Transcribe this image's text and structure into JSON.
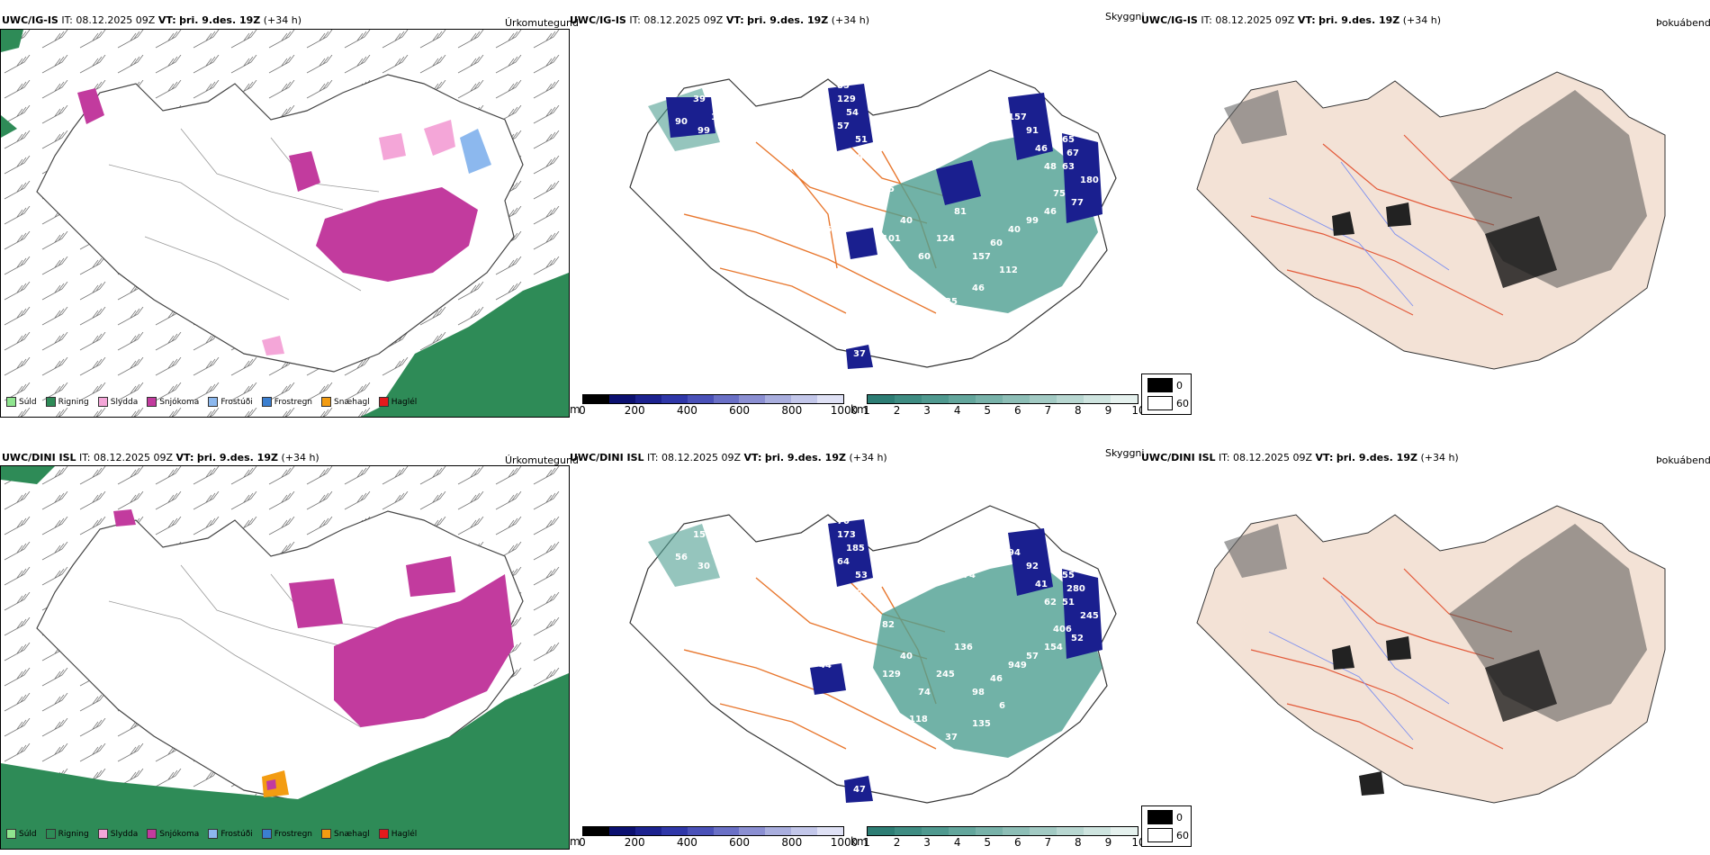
{
  "rows": [
    {
      "header": {
        "model": "UWC/IG-IS",
        "it_label": "IT:",
        "it_value": "08.12.2025 09Z",
        "vt_label": "VT:",
        "vt_value": "þri. 9.des. 19Z",
        "lead": "(+34 h)"
      },
      "precip_title": "Úrkomutegund",
      "vis_title": "Skyggni",
      "fog_title": "Þokuábendi",
      "vis_labels": [
        "56",
        "39",
        "102",
        "90",
        "99",
        "85",
        "129",
        "54",
        "57",
        "51",
        "78",
        "62",
        "65",
        "33",
        "46",
        "43",
        "94",
        "135",
        "98",
        "157",
        "91",
        "46",
        "48",
        "65",
        "67",
        "63",
        "180",
        "75",
        "77",
        "46",
        "99",
        "40",
        "60",
        "157",
        "81",
        "124",
        "60",
        "40",
        "101",
        "112",
        "46",
        "35",
        "37",
        "26"
      ]
    },
    {
      "header": {
        "model": "UWC/DINI ISL",
        "it_label": "IT:",
        "it_value": "08.12.2025 09Z",
        "vt_label": "VT:",
        "vt_value": "þri. 9.des. 19Z",
        "lead": "(+34 h)"
      },
      "precip_title": "Úrkomutegund",
      "vis_title": "Skyggni",
      "fog_title": "Þokuábendi",
      "vis_labels": [
        "67",
        "15",
        "60",
        "56",
        "30",
        "70",
        "173",
        "185",
        "64",
        "53",
        "57",
        "65",
        "82",
        "125",
        "81",
        "71",
        "63",
        "74",
        "93",
        "94",
        "92",
        "41",
        "62",
        "55",
        "280",
        "51",
        "245",
        "406",
        "52",
        "154",
        "57",
        "949",
        "46",
        "98",
        "136",
        "245",
        "74",
        "40",
        "129",
        "6",
        "135",
        "37",
        "47",
        "44",
        "118"
      ]
    }
  ],
  "precip_legend": [
    {
      "label": "Súld",
      "color": "#8fe58f"
    },
    {
      "label": "Rigning",
      "color": "#2e8b57"
    },
    {
      "label": "Slydda",
      "color": "#f4a6d8"
    },
    {
      "label": "Snjókoma",
      "color": "#c23b9e"
    },
    {
      "label": "Frostúði",
      "color": "#8cb8ee"
    },
    {
      "label": "Frostregn",
      "color": "#3b7fd0"
    },
    {
      "label": "Snæhagl",
      "color": "#f39c12"
    },
    {
      "label": "Haglél",
      "color": "#e41a1c"
    }
  ],
  "ceiling_scale": {
    "unit": "m",
    "ticks": [
      "0",
      "200",
      "400",
      "600",
      "800",
      "1000"
    ],
    "colors": [
      "#000000",
      "#0b1070",
      "#1c228f",
      "#2f37a8",
      "#4a51b8",
      "#6a70c6",
      "#8b8fd2",
      "#a9aede",
      "#c3c7ea",
      "#dfe1f5"
    ]
  },
  "vis_scale": {
    "unit": "km",
    "ticks": [
      "1",
      "2",
      "3",
      "4",
      "5",
      "6",
      "7",
      "8",
      "9",
      "10"
    ],
    "colors": [
      "#2d7d74",
      "#3e8c82",
      "#4f998f",
      "#63a69c",
      "#78b2a9",
      "#8dbeb6",
      "#a2cac3",
      "#b8d7d1",
      "#ceE4df",
      "#e5f1ee"
    ]
  },
  "fog_key": {
    "dark_label": "0",
    "light_label": "60"
  },
  "colors": {
    "snow": "#c23b9e",
    "rain": "#2e8b57",
    "road": "#e8772e",
    "land_fog": "#f3e2d6",
    "ceiling": "#1a1f8f",
    "vis_green": "#4e9f91"
  }
}
